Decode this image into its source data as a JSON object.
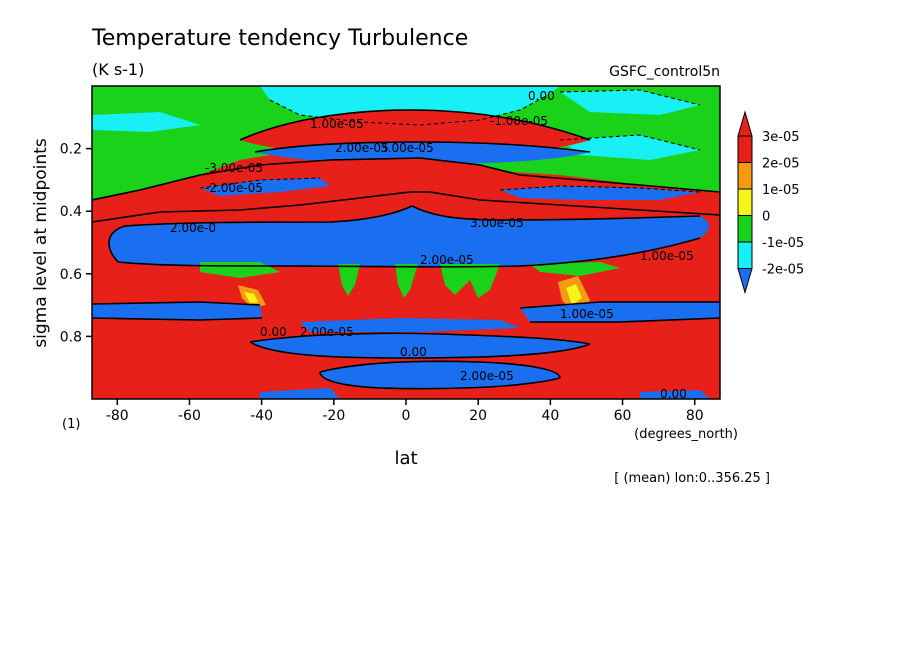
{
  "page": {
    "title": "Temperature tendency Turbulence",
    "units": "(K s-1)",
    "run": "GSFC_control5n",
    "ylabel": "sigma level at midpoints",
    "yunit": "(1)",
    "xlabel": "lat",
    "xunit": "(degrees_north)",
    "note": "[ (mean) lon:0..356.25 ]"
  },
  "colors": {
    "red": "#e8201a",
    "orange": "#f59a11",
    "yellow": "#f6f519",
    "green": "#19d219",
    "cyan": "#19f0f5",
    "blue": "#1a6ef0"
  },
  "chart_data": {
    "type": "heatmap",
    "subtype": "filled contour",
    "title": "Temperature tendency Turbulence",
    "subtitle": "(K s-1)",
    "xlabel": "lat",
    "xunit": "(degrees_north)",
    "ylabel": "sigma level at midpoints",
    "yunit": "(1)",
    "xlim": [
      -87,
      87
    ],
    "ylim": [
      1.0,
      0.0
    ],
    "y_inverted": true,
    "x_ticks": [
      -80,
      -60,
      -40,
      -20,
      0,
      20,
      40,
      60,
      80
    ],
    "x_tick_labels": [
      "-80",
      "-60",
      "-40",
      "-20",
      "0",
      "20",
      "40",
      "60",
      "80"
    ],
    "y_ticks": [
      0.2,
      0.4,
      0.6,
      0.8
    ],
    "y_tick_labels": [
      "0.2",
      "0.4",
      "0.6",
      "0.8"
    ],
    "colorbar": {
      "levels": [
        -2e-05,
        -1e-05,
        0,
        1e-05,
        2e-05,
        3e-05
      ],
      "labels": [
        "-2e-05",
        "-1e-05",
        "0",
        "1e-05",
        "2e-05",
        "3e-05"
      ],
      "colors": [
        "#1a6ef0",
        "#19f0f5",
        "#19d219",
        "#f6f519",
        "#f59a11",
        "#e8201a"
      ],
      "extend": "both"
    },
    "contour_labels": [
      "1.00e-05",
      "2.00e-05",
      "3.00e-05",
      "-3.00e-05",
      "-2.00e-05",
      "-1.00e-05",
      "0.00",
      "2.00e-0",
      "3.00e-05",
      "1.00e-05",
      "2.00e-05",
      "0.00",
      "2.00e-05",
      "0.00",
      "2.00e-05",
      "1.00e-05",
      "0.00"
    ]
  }
}
